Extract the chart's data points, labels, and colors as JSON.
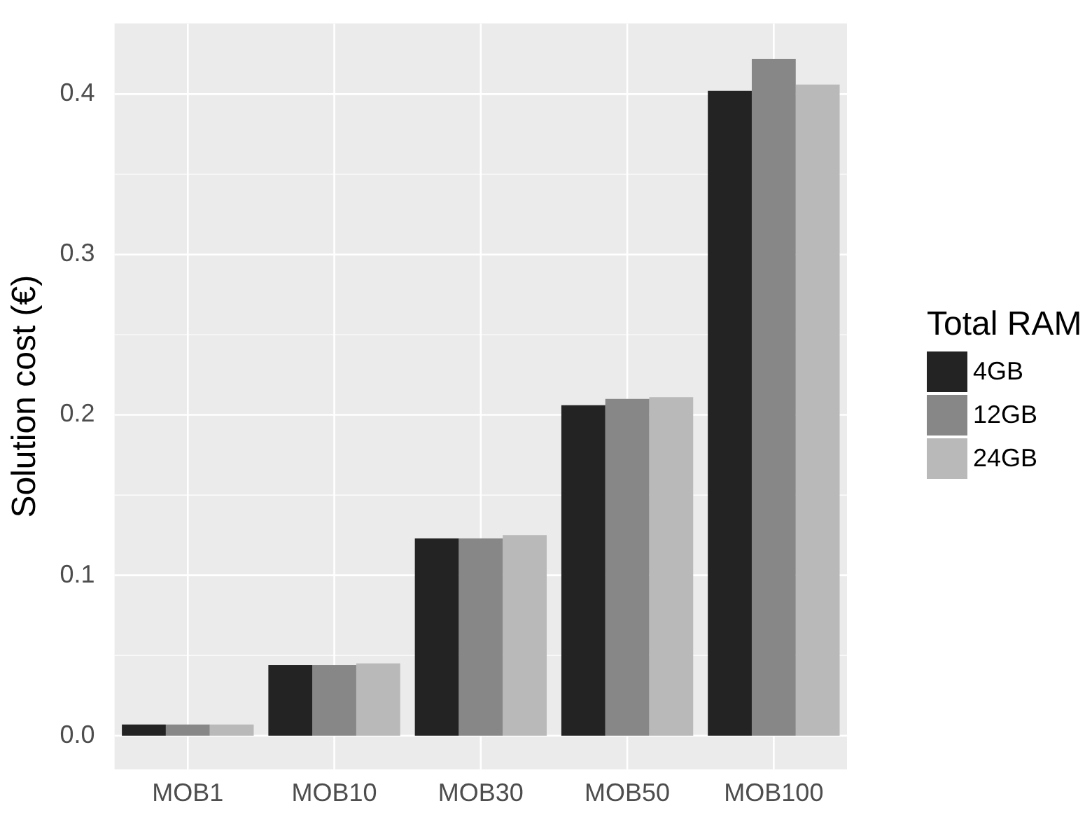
{
  "chart_data": {
    "type": "bar",
    "ylabel": "Solution cost (€)",
    "legend_title": "Total RAM",
    "categories": [
      "MOB1",
      "MOB10",
      "MOB30",
      "MOB50",
      "MOB100"
    ],
    "series": [
      {
        "name": "4GB",
        "color": "#232323",
        "values": [
          0.007,
          0.044,
          0.123,
          0.206,
          0.402
        ]
      },
      {
        "name": "12GB",
        "color": "#878787",
        "values": [
          0.007,
          0.044,
          0.123,
          0.21,
          0.422
        ]
      },
      {
        "name": "24GB",
        "color": "#b9b9b9",
        "values": [
          0.007,
          0.045,
          0.125,
          0.211,
          0.406
        ]
      }
    ],
    "ylim": [
      -0.021,
      0.444
    ],
    "yticks": [
      {
        "value": 0,
        "label": "0.0"
      },
      {
        "value": 0.05,
        "label": null
      },
      {
        "value": 0.1,
        "label": "0.1"
      },
      {
        "value": 0.15,
        "label": null
      },
      {
        "value": 0.2,
        "label": "0.2"
      },
      {
        "value": 0.25,
        "label": null
      },
      {
        "value": 0.3,
        "label": "0.3"
      },
      {
        "value": 0.35,
        "label": null
      },
      {
        "value": 0.4,
        "label": "0.4"
      }
    ],
    "grid": true,
    "legend": "right"
  }
}
